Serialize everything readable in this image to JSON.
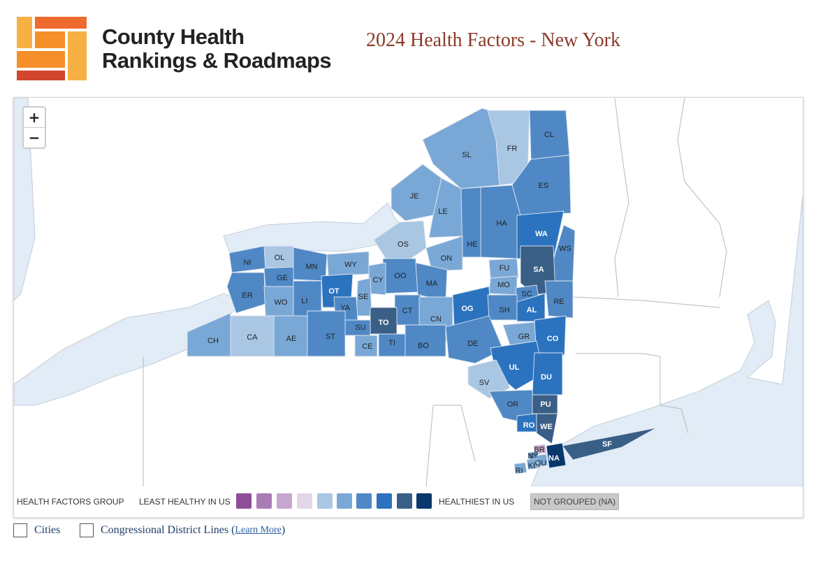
{
  "brand": {
    "line1": "County Health",
    "line2": "Rankings & Roadmaps"
  },
  "page_title": "2024 Health Factors - New York",
  "zoom": {
    "in_label": "+",
    "out_label": "−"
  },
  "legend": {
    "group_label": "HEALTH FACTORS GROUP",
    "least_label": "LEAST HEALTHY IN US",
    "most_label": "HEALTHIEST IN US",
    "na_label": "NOT GROUPED (NA)",
    "colors": [
      "#8e4e9a",
      "#a97cb5",
      "#c6a6cc",
      "#e3d6e6",
      "#a9c6e3",
      "#7aa8d6",
      "#4f88c5",
      "#2b73bf",
      "#3a5f86",
      "#08386b"
    ]
  },
  "options": {
    "cities_label": "Cities",
    "district_label": "Congressional District Lines",
    "learn_more": "Learn More"
  },
  "counties": [
    {
      "code": "SL",
      "color": "#7aa8d6"
    },
    {
      "code": "FR",
      "color": "#a9c6e3"
    },
    {
      "code": "CL",
      "color": "#4f88c5"
    },
    {
      "code": "JE",
      "color": "#7aa8d6"
    },
    {
      "code": "LE",
      "color": "#7aa8d6"
    },
    {
      "code": "ES",
      "color": "#4f88c5"
    },
    {
      "code": "HA",
      "color": "#4f88c5"
    },
    {
      "code": "OS",
      "color": "#a9c6e3"
    },
    {
      "code": "HE",
      "color": "#4f88c5"
    },
    {
      "code": "WA",
      "color": "#2b73bf"
    },
    {
      "code": "WS",
      "color": "#4f88c5"
    },
    {
      "code": "NI",
      "color": "#4f88c5"
    },
    {
      "code": "OL",
      "color": "#a9c6e3"
    },
    {
      "code": "MN",
      "color": "#4f88c5"
    },
    {
      "code": "WY",
      "color": "#7aa8d6"
    },
    {
      "code": "ON",
      "color": "#7aa8d6"
    },
    {
      "code": "FU",
      "color": "#7aa8d6"
    },
    {
      "code": "SA",
      "color": "#3a5f86"
    },
    {
      "code": "GE",
      "color": "#4f88c5"
    },
    {
      "code": "OO",
      "color": "#4f88c5"
    },
    {
      "code": "CY",
      "color": "#7aa8d6"
    },
    {
      "code": "MA",
      "color": "#4f88c5"
    },
    {
      "code": "MO",
      "color": "#7aa8d6"
    },
    {
      "code": "SC",
      "color": "#4f88c5"
    },
    {
      "code": "ER",
      "color": "#4f88c5"
    },
    {
      "code": "OT",
      "color": "#2b73bf"
    },
    {
      "code": "SE",
      "color": "#7aa8d6"
    },
    {
      "code": "WO",
      "color": "#7aa8d6"
    },
    {
      "code": "LI",
      "color": "#4f88c5"
    },
    {
      "code": "YA",
      "color": "#4f88c5"
    },
    {
      "code": "OG",
      "color": "#2b73bf"
    },
    {
      "code": "SH",
      "color": "#4f88c5"
    },
    {
      "code": "AL",
      "color": "#2b73bf"
    },
    {
      "code": "RE",
      "color": "#4f88c5"
    },
    {
      "code": "CT",
      "color": "#4f88c5"
    },
    {
      "code": "CN",
      "color": "#7aa8d6"
    },
    {
      "code": "TO",
      "color": "#3a5f86"
    },
    {
      "code": "SU",
      "color": "#4f88c5"
    },
    {
      "code": "CH",
      "color": "#7aa8d6"
    },
    {
      "code": "CA",
      "color": "#a9c6e3"
    },
    {
      "code": "AE",
      "color": "#7aa8d6"
    },
    {
      "code": "ST",
      "color": "#4f88c5"
    },
    {
      "code": "CE",
      "color": "#7aa8d6"
    },
    {
      "code": "TI",
      "color": "#4f88c5"
    },
    {
      "code": "BO",
      "color": "#4f88c5"
    },
    {
      "code": "DE",
      "color": "#4f88c5"
    },
    {
      "code": "GR",
      "color": "#7aa8d6"
    },
    {
      "code": "CO",
      "color": "#2b73bf"
    },
    {
      "code": "UL",
      "color": "#2b73bf"
    },
    {
      "code": "DU",
      "color": "#2b73bf"
    },
    {
      "code": "SV",
      "color": "#a9c6e3"
    },
    {
      "code": "OR",
      "color": "#4f88c5"
    },
    {
      "code": "PU",
      "color": "#3a5f86"
    },
    {
      "code": "RO",
      "color": "#2b73bf"
    },
    {
      "code": "WE",
      "color": "#3a5f86"
    },
    {
      "code": "SF",
      "color": "#3a5f86"
    },
    {
      "code": "BR",
      "color": "#c6a6cc"
    },
    {
      "code": "NY",
      "color": "#4f88c5"
    },
    {
      "code": "QU",
      "color": "#7aa8d6"
    },
    {
      "code": "KI",
      "color": "#7aa8d6"
    },
    {
      "code": "NA",
      "color": "#08386b"
    },
    {
      "code": "RI",
      "color": "#7aa8d6"
    }
  ]
}
